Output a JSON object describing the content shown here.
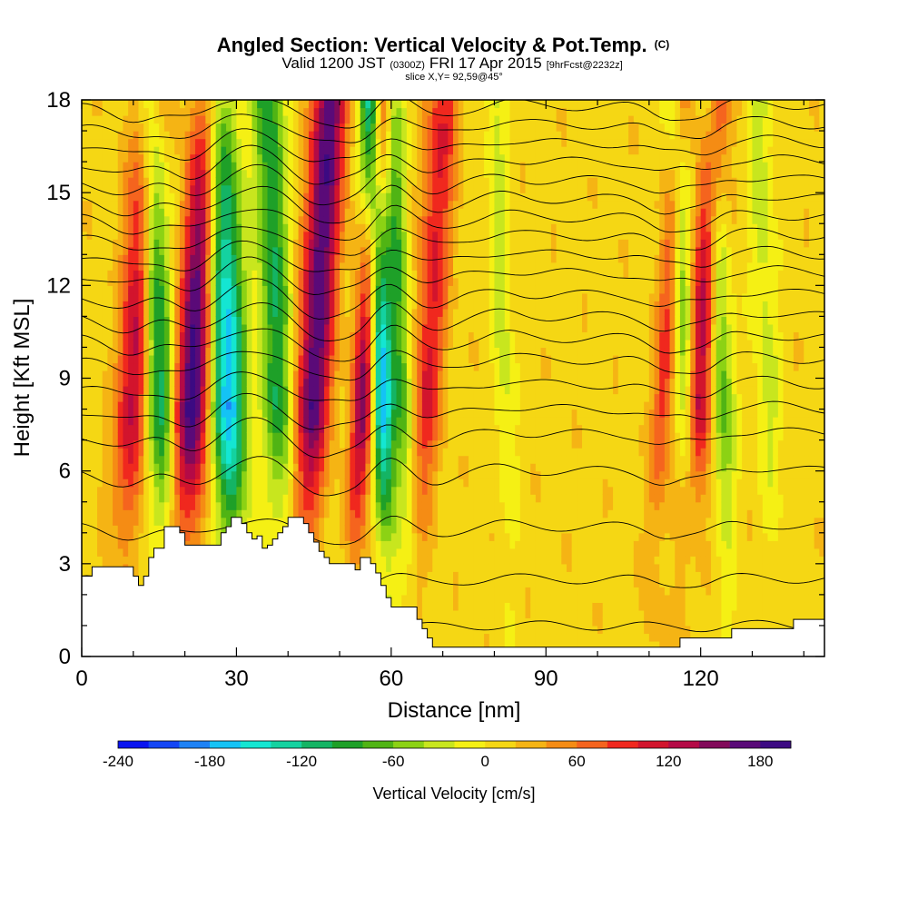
{
  "title": {
    "main": "Angled Section: Vertical Velocity & Pot.Temp.",
    "copyright": "(C)"
  },
  "subtitle": {
    "valid": "Valid 1200 JST",
    "utc": "(0300Z)",
    "date": "FRI 17 Apr 2015",
    "forecast": "[9hrFcst@2232z]",
    "slice": "slice X,Y= 92,59@45°"
  },
  "chart_data": {
    "type": "heatmap",
    "xlabel": "Distance [nm]",
    "ylabel": "Height [Kft MSL]",
    "xlim": [
      0,
      144
    ],
    "ylim": [
      0,
      18
    ],
    "xticks": [
      0,
      30,
      60,
      90,
      120
    ],
    "yticks": [
      0,
      3,
      6,
      9,
      12,
      15,
      18
    ],
    "colorbar": {
      "label": "Vertical Velocity [cm/s]",
      "ticks": [
        -240,
        -180,
        -120,
        -60,
        0,
        60,
        120,
        180
      ],
      "min": -240,
      "max": 200,
      "step": 20,
      "colors": [
        "#0a14f0",
        "#1446f5",
        "#1e82f5",
        "#14c3f5",
        "#14e6d2",
        "#14d2a0",
        "#14b464",
        "#1ea028",
        "#50b414",
        "#8cd214",
        "#c8e61e",
        "#f5f014",
        "#f5d714",
        "#f5b414",
        "#f58c14",
        "#f5641e",
        "#f0281e",
        "#d2142d",
        "#b40a46",
        "#820a5a",
        "#5a0a78",
        "#3c0a82"
      ]
    },
    "terrain_profile": {
      "x": [
        0,
        2,
        5,
        10,
        11,
        12,
        13,
        14,
        16,
        18,
        19,
        20,
        24,
        27,
        28,
        29,
        30,
        31,
        32,
        33,
        34,
        35,
        36,
        37,
        38,
        39,
        40,
        42,
        43,
        44,
        45,
        46,
        47,
        48,
        52,
        53,
        54,
        55,
        56,
        57,
        58,
        59,
        60,
        62,
        64,
        65,
        66,
        67,
        68,
        70,
        90,
        110,
        115,
        116,
        117,
        118,
        120,
        125,
        126,
        137,
        138,
        140,
        144
      ],
      "height_kft": [
        2.6,
        2.9,
        2.9,
        2.6,
        2.3,
        2.6,
        3.2,
        3.5,
        4.2,
        4.2,
        4.0,
        3.6,
        3.6,
        4.0,
        4.2,
        4.5,
        4.5,
        4.3,
        4.0,
        3.8,
        3.9,
        3.5,
        3.6,
        3.8,
        4.0,
        4.2,
        4.5,
        4.5,
        4.3,
        4.0,
        3.7,
        3.4,
        3.2,
        3.0,
        3.0,
        2.8,
        3.2,
        3.2,
        3.0,
        2.7,
        2.3,
        1.9,
        1.6,
        1.6,
        1.6,
        1.2,
        0.9,
        0.6,
        0.3,
        0.3,
        0.3,
        0.3,
        0.3,
        0.6,
        0.6,
        0.6,
        0.6,
        0.6,
        0.9,
        0.9,
        1.2,
        1.2,
        1.3
      ]
    },
    "updraft_columns": [
      {
        "x": 10,
        "width": 3.0,
        "peak_cms": 120
      },
      {
        "x": 22,
        "width": 3.6,
        "peak_cms": 190
      },
      {
        "x": 45,
        "width": 3.2,
        "peak_cms": 170
      },
      {
        "x": 55,
        "width": 2.4,
        "peak_cms": 150
      },
      {
        "x": 67,
        "width": 3.0,
        "peak_cms": 90
      },
      {
        "x": 113,
        "width": 2.0,
        "peak_cms": 80
      },
      {
        "x": 120,
        "width": 2.6,
        "peak_cms": 130
      }
    ],
    "downdraft_columns": [
      {
        "x": 15,
        "width": 2.6,
        "peak_cms": -130
      },
      {
        "x": 28,
        "width": 3.6,
        "peak_cms": -200
      },
      {
        "x": 38,
        "width": 3.0,
        "peak_cms": -110
      },
      {
        "x": 58,
        "width": 2.2,
        "peak_cms": -200
      },
      {
        "x": 62,
        "width": 2.2,
        "peak_cms": -90
      },
      {
        "x": 82,
        "width": 2.0,
        "peak_cms": -40
      },
      {
        "x": 117,
        "width": 2.0,
        "peak_cms": -80
      },
      {
        "x": 124,
        "width": 2.2,
        "peak_cms": -90
      },
      {
        "x": 133,
        "width": 2.4,
        "peak_cms": -40
      }
    ],
    "theta_contours_kft": [
      1.0,
      2.5,
      4.2,
      6.0,
      7.2,
      8.0,
      8.8,
      9.6,
      10.3,
      11.0,
      11.7,
      12.4,
      13.0,
      13.6,
      14.2,
      14.8,
      15.4,
      16.0,
      16.6,
      17.2,
      17.8
    ]
  }
}
